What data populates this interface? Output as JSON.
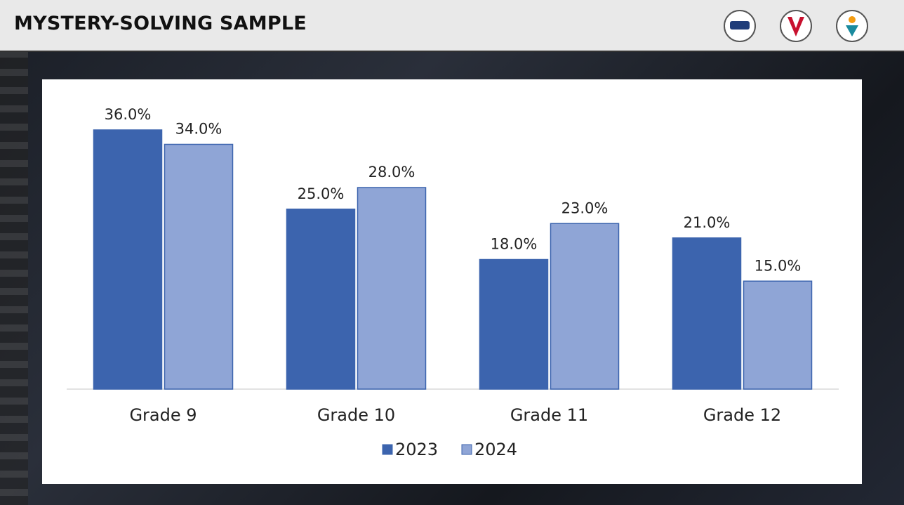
{
  "header": {
    "title": "MYSTERY-SOLVING SAMPLE"
  },
  "chart_data": {
    "type": "bar",
    "categories": [
      "Grade 9",
      "Grade 10",
      "Grade 11",
      "Grade 12"
    ],
    "series": [
      {
        "name": "2023",
        "color": "#3c64ae",
        "values": [
          36,
          25,
          18,
          21
        ],
        "value_labels": [
          "36.0%",
          "25.0%",
          "18.0%",
          "21.0%"
        ]
      },
      {
        "name": "2024",
        "color": "#8fa5d6",
        "values": [
          34,
          28,
          23,
          15
        ],
        "value_labels": [
          "34.0%",
          "28.0%",
          "23.0%",
          "15.0%"
        ]
      }
    ],
    "legend": "bottom"
  }
}
